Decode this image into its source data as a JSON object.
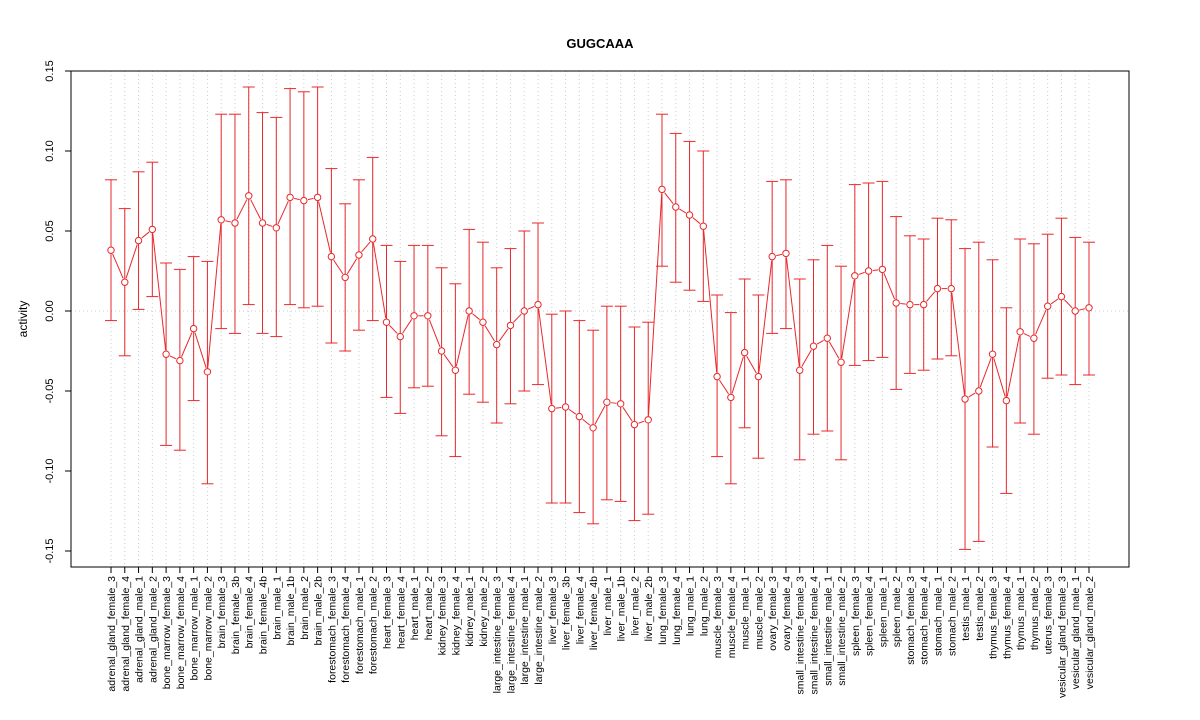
{
  "chart_data": {
    "type": "line",
    "title": "GUGCAAA",
    "xlabel": "",
    "ylabel": "activity",
    "ylim": [
      -0.16,
      0.15
    ],
    "yticks": [
      -0.15,
      -0.1,
      -0.05,
      0.0,
      0.05,
      0.1,
      0.15
    ],
    "ytick_labels": [
      "-0.15",
      "-0.10",
      "-0.05",
      "0.00",
      "0.05",
      "0.10",
      "0.15"
    ],
    "grid": "vertical dotted per category, horizontal dotted at 0",
    "series_color": "#e8282b",
    "categories": [
      "adrenal_gland_female_3",
      "adrenal_gland_female_4",
      "adrenal_gland_male_1",
      "adrenal_gland_male_2",
      "bone_marrow_female_3",
      "bone_marrow_female_4",
      "bone_marrow_male_1",
      "bone_marrow_male_2",
      "brain_female_3",
      "brain_female_3b",
      "brain_female_4",
      "brain_female_4b",
      "brain_male_1",
      "brain_male_1b",
      "brain_male_2",
      "brain_male_2b",
      "forestomach_female_3",
      "forestomach_female_4",
      "forestomach_male_1",
      "forestomach_male_2",
      "heart_female_3",
      "heart_female_4",
      "heart_male_1",
      "heart_male_2",
      "kidney_female_3",
      "kidney_female_4",
      "kidney_male_1",
      "kidney_male_2",
      "large_intestine_female_3",
      "large_intestine_female_4",
      "large_intestine_male_1",
      "large_intestine_male_2",
      "liver_female_3",
      "liver_female_3b",
      "liver_female_4",
      "liver_female_4b",
      "liver_male_1",
      "liver_male_1b",
      "liver_male_2",
      "liver_male_2b",
      "lung_female_3",
      "lung_female_4",
      "lung_male_1",
      "lung_male_2",
      "muscle_female_3",
      "muscle_female_4",
      "muscle_male_1",
      "muscle_male_2",
      "ovary_female_3",
      "ovary_female_4",
      "small_intestine_female_3",
      "small_intestine_female_4",
      "small_intestine_male_1",
      "small_intestine_male_2",
      "spleen_female_3",
      "spleen_female_4",
      "spleen_male_1",
      "spleen_male_2",
      "stomach_female_3",
      "stomach_female_4",
      "stomach_male_1",
      "stomach_male_2",
      "testis_male_1",
      "testis_male_2",
      "thymus_female_3",
      "thymus_female_4",
      "thymus_male_1",
      "thymus_male_2",
      "uterus_female_3",
      "vesicular_gland_female_3",
      "vesicular_gland_male_1",
      "vesicular_gland_male_2"
    ],
    "values": [
      0.038,
      0.018,
      0.044,
      0.051,
      -0.027,
      -0.031,
      -0.011,
      -0.038,
      0.057,
      0.055,
      0.072,
      0.055,
      0.052,
      0.071,
      0.069,
      0.071,
      0.034,
      0.021,
      0.035,
      0.045,
      -0.007,
      -0.016,
      -0.003,
      -0.003,
      -0.025,
      -0.037,
      0.0,
      -0.007,
      -0.021,
      -0.009,
      0.0,
      0.004,
      -0.061,
      -0.06,
      -0.066,
      -0.073,
      -0.057,
      -0.058,
      -0.071,
      -0.068,
      0.076,
      0.065,
      0.06,
      0.053,
      -0.041,
      -0.054,
      -0.026,
      -0.041,
      0.034,
      0.036,
      -0.037,
      -0.022,
      -0.017,
      -0.032,
      0.022,
      0.025,
      0.026,
      0.005,
      0.004,
      0.004,
      0.014,
      0.014,
      -0.055,
      -0.05,
      -0.027,
      -0.056,
      -0.013,
      -0.017,
      0.003,
      0.009,
      0.0,
      0.002
    ],
    "lower": [
      -0.006,
      -0.028,
      0.001,
      0.009,
      -0.084,
      -0.087,
      -0.056,
      -0.108,
      -0.011,
      -0.014,
      0.004,
      -0.014,
      -0.016,
      0.004,
      0.002,
      0.003,
      -0.02,
      -0.025,
      -0.012,
      -0.006,
      -0.054,
      -0.064,
      -0.048,
      -0.047,
      -0.078,
      -0.091,
      -0.052,
      -0.057,
      -0.07,
      -0.058,
      -0.05,
      -0.046,
      -0.12,
      -0.12,
      -0.126,
      -0.133,
      -0.118,
      -0.119,
      -0.131,
      -0.127,
      0.028,
      0.018,
      0.013,
      0.006,
      -0.091,
      -0.108,
      -0.073,
      -0.092,
      -0.014,
      -0.011,
      -0.093,
      -0.077,
      -0.075,
      -0.093,
      -0.034,
      -0.031,
      -0.029,
      -0.049,
      -0.039,
      -0.037,
      -0.03,
      -0.028,
      -0.149,
      -0.144,
      -0.085,
      -0.114,
      -0.07,
      -0.077,
      -0.042,
      -0.04,
      -0.046,
      -0.04
    ],
    "upper": [
      0.082,
      0.064,
      0.087,
      0.093,
      0.03,
      0.026,
      0.034,
      0.031,
      0.123,
      0.123,
      0.14,
      0.124,
      0.121,
      0.139,
      0.137,
      0.14,
      0.089,
      0.067,
      0.082,
      0.096,
      0.041,
      0.031,
      0.041,
      0.041,
      0.027,
      0.017,
      0.051,
      0.043,
      0.027,
      0.039,
      0.05,
      0.055,
      -0.002,
      0.0,
      -0.006,
      -0.012,
      0.003,
      0.003,
      -0.01,
      -0.007,
      0.123,
      0.111,
      0.106,
      0.1,
      0.01,
      -0.001,
      0.02,
      0.01,
      0.081,
      0.082,
      0.02,
      0.032,
      0.041,
      0.028,
      0.079,
      0.08,
      0.081,
      0.059,
      0.047,
      0.045,
      0.058,
      0.057,
      0.039,
      0.043,
      0.032,
      0.002,
      0.045,
      0.042,
      0.048,
      0.058,
      0.046,
      0.043
    ]
  }
}
